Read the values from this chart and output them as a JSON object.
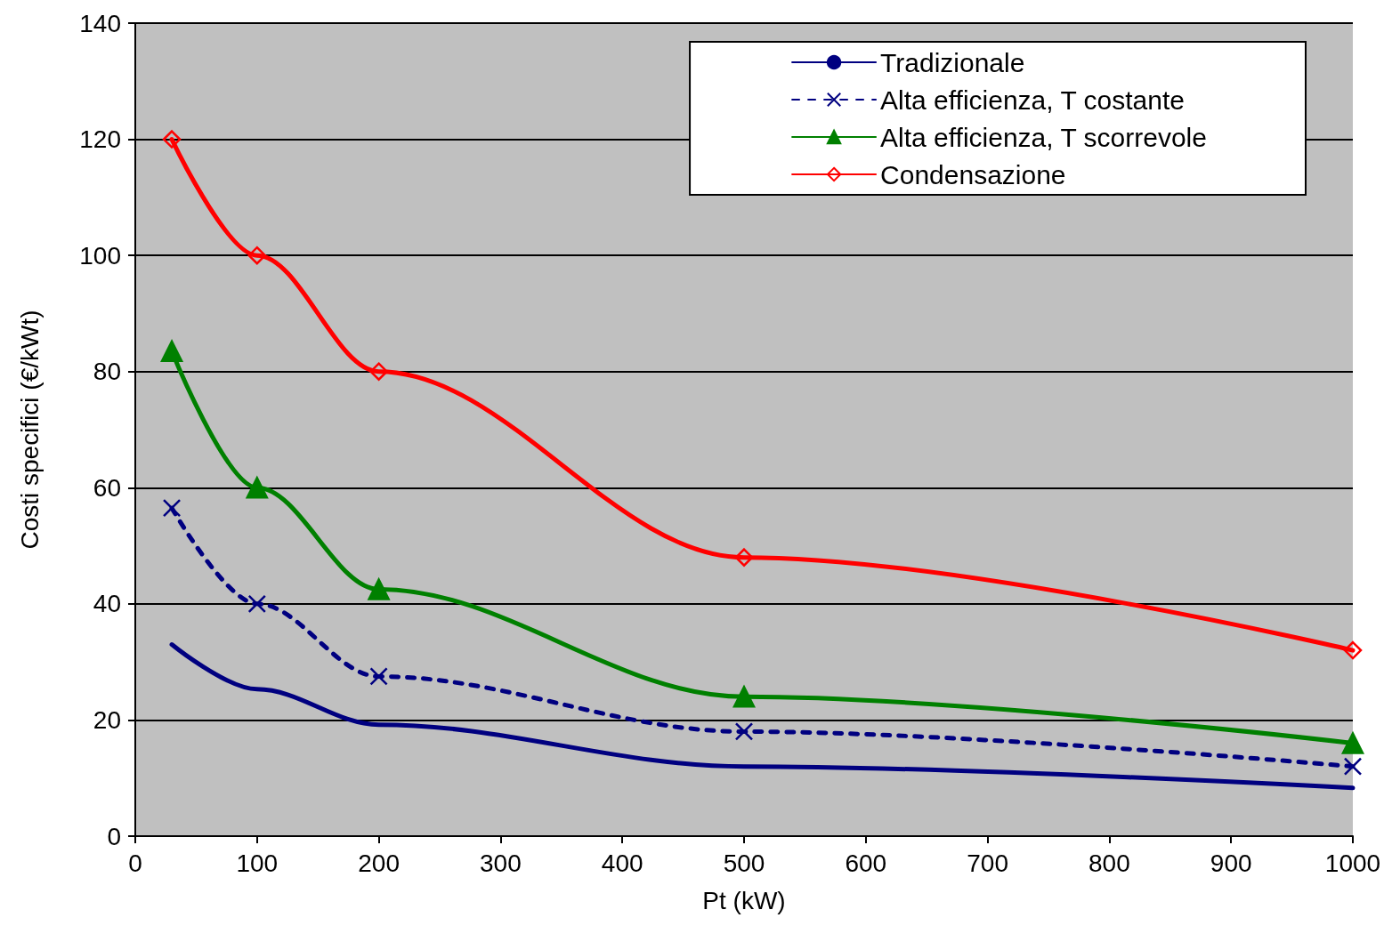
{
  "chart_data": {
    "type": "line",
    "xlabel": "Pt (kW)",
    "ylabel": "Costi specifici (€/kWt)",
    "x": [
      30,
      100,
      200,
      500,
      1000
    ],
    "series": [
      {
        "name": "Tradizionale",
        "color": "#000080",
        "values": [
          33,
          25.3,
          19.2,
          12,
          8.3
        ],
        "marker": "none",
        "line_style": "solid"
      },
      {
        "name": "Alta efficienza, T costante",
        "color": "#000080",
        "values": [
          56.5,
          40,
          27.5,
          18,
          12
        ],
        "marker": "cross",
        "line_style": "dashed"
      },
      {
        "name": "Alta efficienza, T scorrevole",
        "color": "#008000",
        "values": [
          83.5,
          60,
          42.5,
          24,
          16
        ],
        "marker": "triangle",
        "line_style": "solid"
      },
      {
        "name": "Condensazione",
        "color": "#ff0000",
        "values": [
          120,
          100,
          80,
          48,
          32
        ],
        "marker": "diamond",
        "line_style": "solid"
      }
    ],
    "xlim": [
      0,
      1000
    ],
    "xticks": [
      0,
      100,
      200,
      300,
      400,
      500,
      600,
      700,
      800,
      900,
      1000
    ],
    "ylim": [
      0,
      140
    ],
    "yticks": [
      0,
      20,
      40,
      60,
      80,
      100,
      120,
      140
    ],
    "grid": "y",
    "legend": "top right"
  }
}
